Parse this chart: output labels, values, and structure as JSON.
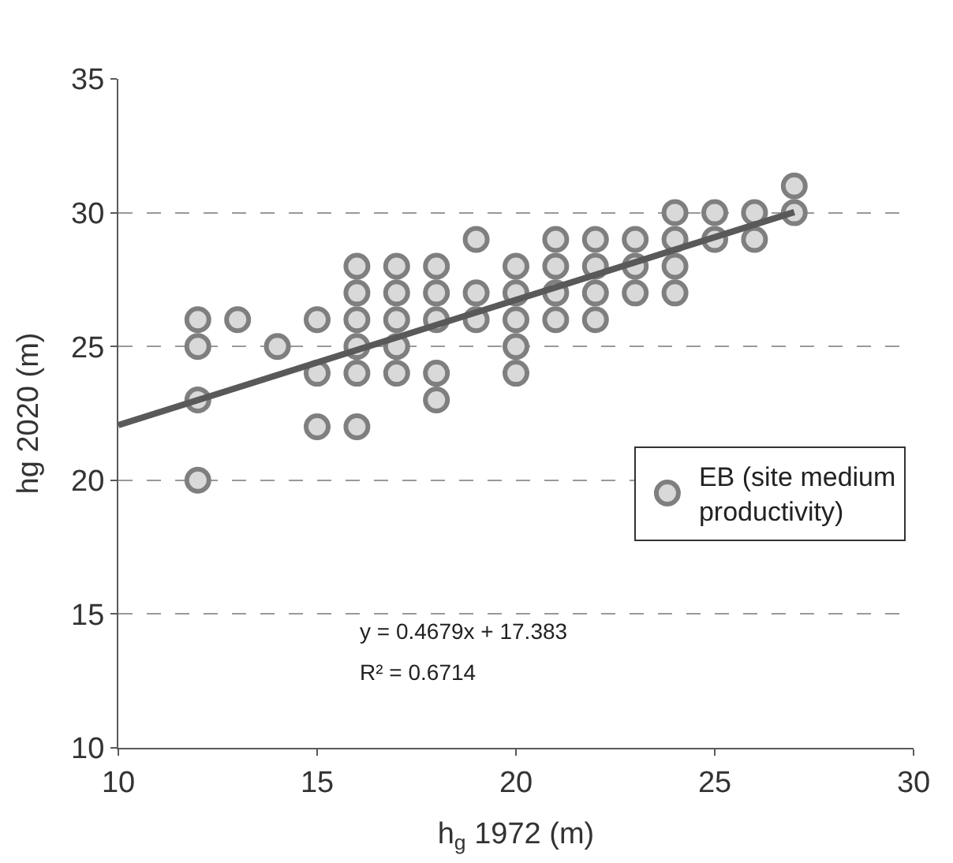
{
  "chart_data": {
    "type": "scatter",
    "xlabel": "h$_{g}$ 1972 (m)",
    "ylabel": "hg 2020 (m)",
    "xlim": [
      10,
      30
    ],
    "xticks": [
      10,
      15,
      20,
      25,
      30
    ],
    "ylim": [
      10,
      35
    ],
    "yticks": [
      10,
      15,
      20,
      25,
      30,
      35
    ],
    "grid": "y",
    "legend": "right",
    "marker": "circle",
    "series": [
      {
        "name": "EB (site medium productivity)",
        "color": "#d9d9d9",
        "x": [
          12,
          12,
          12,
          12,
          13,
          14,
          15,
          15,
          15,
          16,
          16,
          16,
          16,
          16,
          16,
          17,
          17,
          17,
          17,
          17,
          18,
          18,
          18,
          18,
          18,
          19,
          19,
          19,
          20,
          20,
          20,
          20,
          20,
          21,
          21,
          21,
          21,
          22,
          22,
          22,
          22,
          23,
          23,
          23,
          24,
          24,
          24,
          24,
          25,
          25,
          26,
          26,
          27,
          27
        ],
        "values": [
          26,
          25,
          23,
          20,
          26,
          25,
          26,
          24,
          22,
          28,
          27,
          26,
          25,
          24,
          22,
          28,
          27,
          26,
          25,
          24,
          28,
          27,
          26,
          24,
          23,
          29,
          27,
          26,
          28,
          27,
          26,
          25,
          24,
          29,
          28,
          27,
          26,
          29,
          28,
          27,
          26,
          29,
          28,
          27,
          30,
          29,
          28,
          27,
          30,
          29,
          30,
          29,
          31,
          30
        ]
      },
      {
        "type": "line",
        "color": "#595959",
        "x": [
          10,
          27
        ],
        "values": [
          22.06,
          30.02
        ],
        "line_style": "solid",
        "marker": "none"
      }
    ],
    "annotations": [
      "y = 0.4679x + 17.383",
      "R² = 0.6714"
    ]
  }
}
